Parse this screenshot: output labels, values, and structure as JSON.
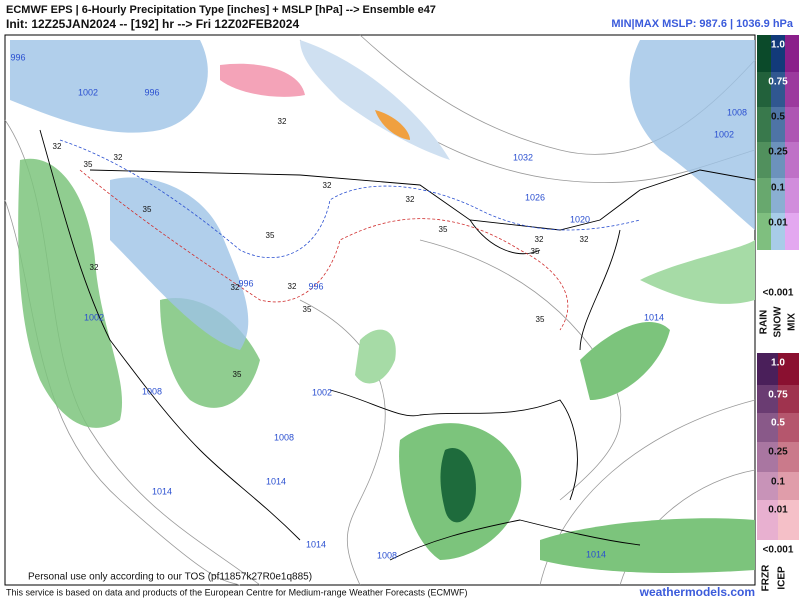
{
  "header": {
    "title": "ECMWF EPS | 6-Hourly Precipitation Type [inches] + MSLP [hPa] --> Ensemble e47",
    "init": "Init: 12Z25JAN2024 -- [192] hr --> Fri 12Z02FEB2024",
    "mslp_range": "MIN|MAX MSLP: 987.6 | 1036.9 hPa"
  },
  "map": {
    "isobar_labels": [
      "996",
      "1002",
      "996",
      "1032",
      "1026",
      "1020",
      "1008",
      "1002",
      "1014",
      "1002",
      "1008",
      "1002",
      "1008",
      "1014",
      "1014",
      "1014",
      "1008",
      "1014",
      "996",
      "996"
    ],
    "thickness_labels": [
      "32",
      "35",
      "32",
      "32",
      "32",
      "35",
      "32",
      "35",
      "32",
      "32",
      "35",
      "35",
      "32",
      "35",
      "32",
      "35",
      "32",
      "35"
    ]
  },
  "legend_top": {
    "levels": [
      "1.0",
      "0.75",
      "0.5",
      "0.25",
      "0.1",
      "0.01"
    ],
    "min": "<0.001",
    "types": [
      "RAIN",
      "SNOW",
      "MIX"
    ]
  },
  "legend_bottom": {
    "levels": [
      "1.0",
      "0.75",
      "0.5",
      "0.25",
      "0.1",
      "0.01"
    ],
    "min": "<0.001",
    "types": [
      "FRZR",
      "ICEP"
    ]
  },
  "footer": {
    "tos": "Personal use only according to our TOS (pf11857k27R0e1q885)",
    "credit": "This service is based on data and products of the European Centre for Medium-range Weather Forecasts (ECMWF)",
    "site": "weathermodels.com"
  }
}
